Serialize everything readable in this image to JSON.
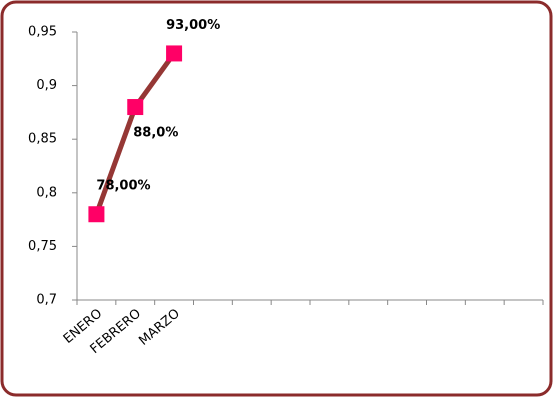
{
  "chart_data": {
    "type": "line",
    "categories": [
      "ENERO",
      "FEBRERO",
      "MARZO",
      null,
      null,
      null,
      null,
      null,
      null,
      null,
      null,
      null
    ],
    "series": [
      {
        "color": "#953735",
        "marker_color": "#ff0066",
        "values": [
          0.78,
          0.88,
          0.93,
          null,
          null,
          null,
          null,
          null,
          null,
          null,
          null,
          null
        ],
        "value_labels": [
          "78,00%",
          "88,0%",
          "93,00%",
          null,
          null,
          null,
          null,
          null,
          null,
          null,
          null,
          null
        ]
      }
    ],
    "ylim": [
      0.7,
      0.95
    ],
    "yticks": [
      {
        "value": 0.7,
        "label": "0,7"
      },
      {
        "value": 0.75,
        "label": "0,75"
      },
      {
        "value": 0.8,
        "label": "0,8"
      },
      {
        "value": 0.85,
        "label": "0,85"
      },
      {
        "value": 0.9,
        "label": "0,9"
      },
      {
        "value": 0.95,
        "label": "0,95"
      }
    ],
    "grid": false
  }
}
